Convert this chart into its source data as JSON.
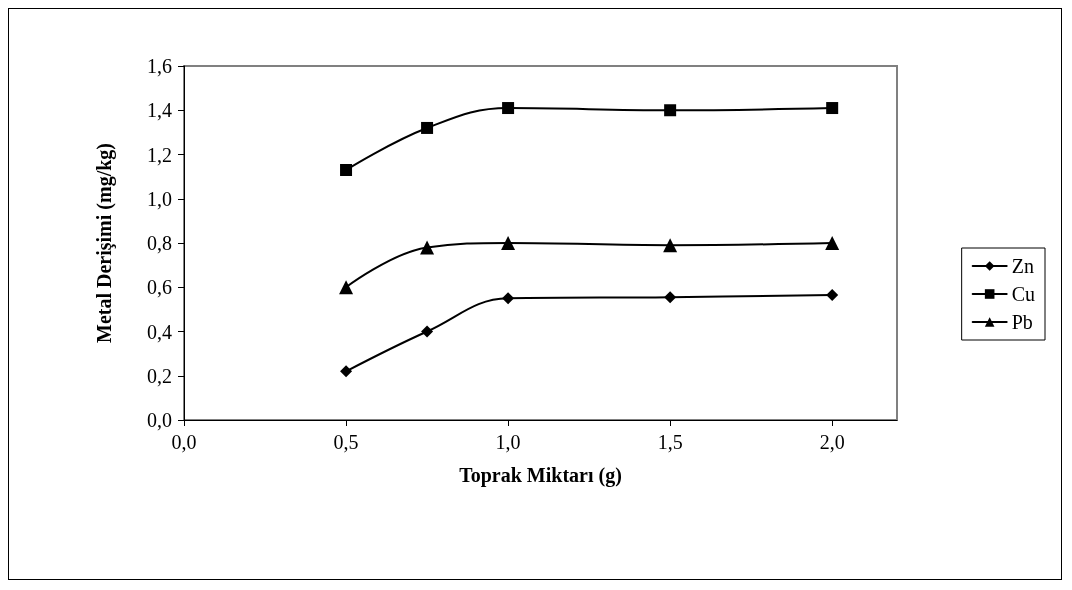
{
  "chart_data": {
    "type": "line",
    "xlabel": "Toprak Miktarı (g)",
    "ylabel": "Metal Derişimi (mg/kg)",
    "x": [
      0.5,
      0.75,
      1.0,
      1.5,
      2.0
    ],
    "series": [
      {
        "name": "Zn",
        "color": "#000000",
        "marker": "diamond",
        "values": [
          0.22,
          0.4,
          0.55,
          0.555,
          0.565
        ]
      },
      {
        "name": "Cu",
        "color": "#000000",
        "marker": "square",
        "values": [
          1.13,
          1.32,
          1.41,
          1.4,
          1.41
        ]
      },
      {
        "name": "Pb",
        "color": "#000000",
        "marker": "triangle",
        "values": [
          0.6,
          0.78,
          0.8,
          0.79,
          0.8
        ]
      }
    ],
    "xlim": [
      0,
      2.2
    ],
    "xticks": [
      {
        "value": 0,
        "label": "0,0"
      },
      {
        "value": 0.5,
        "label": "0,5"
      },
      {
        "value": 1,
        "label": "1,0"
      },
      {
        "value": 1.5,
        "label": "1,5"
      },
      {
        "value": 2,
        "label": "2,0"
      }
    ],
    "ylim": [
      0,
      1.6
    ],
    "yticks": [
      {
        "value": 0,
        "label": "0,0"
      },
      {
        "value": 0.2,
        "label": "0,2"
      },
      {
        "value": 0.4,
        "label": "0,4"
      },
      {
        "value": 0.6,
        "label": "0,6"
      },
      {
        "value": 0.8,
        "label": "0,8"
      },
      {
        "value": 1.0,
        "label": "1,0"
      },
      {
        "value": 1.2,
        "label": "1,2"
      },
      {
        "value": 1.4,
        "label": "1,4"
      },
      {
        "value": 1.6,
        "label": "1,6"
      }
    ],
    "grid": false,
    "legend": "right",
    "line_style": "solid"
  }
}
